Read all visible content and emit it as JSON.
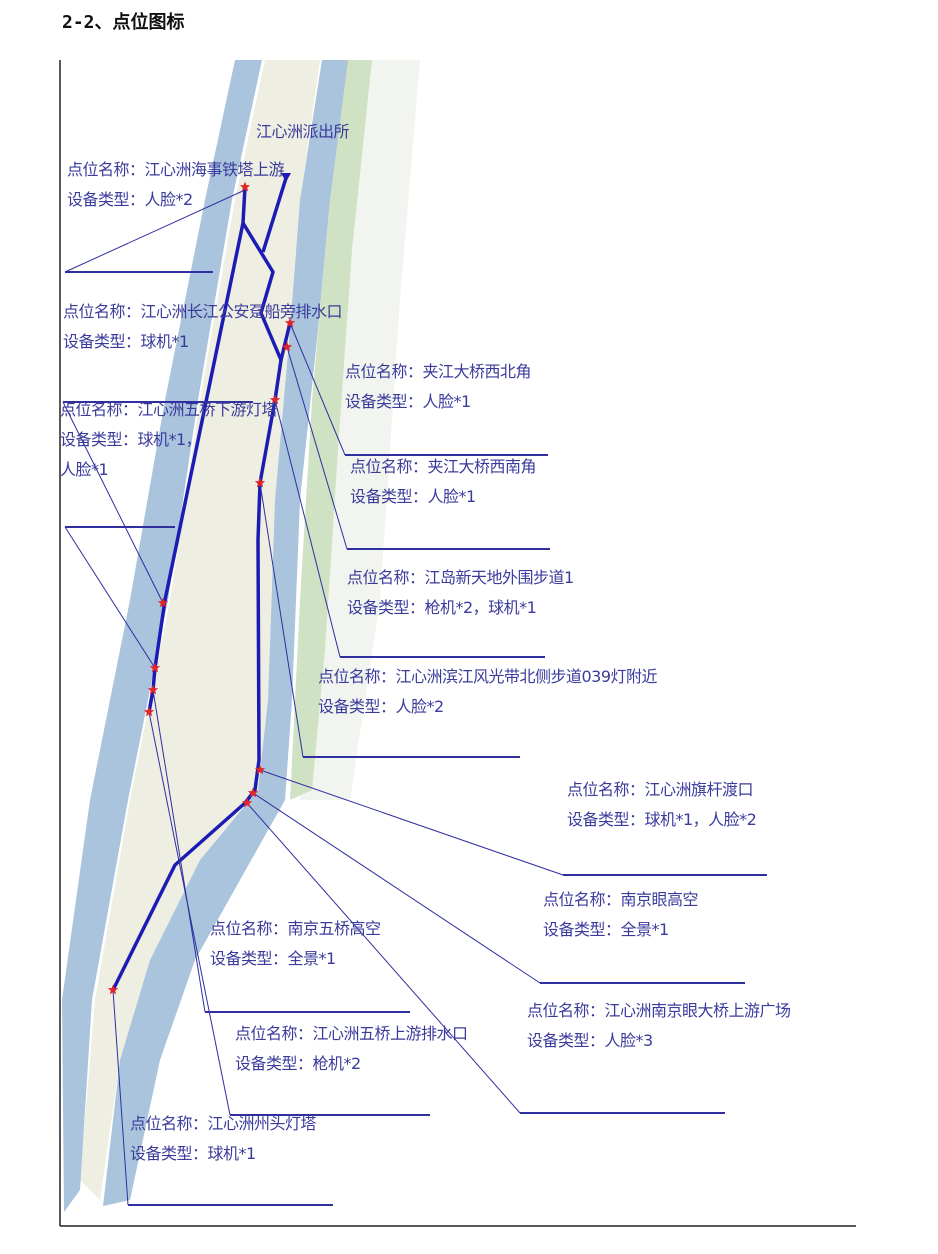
{
  "title": "2-2、点位图标",
  "map": {
    "police_station": "江心洲派出所",
    "colors": {
      "route": "#1c1cb4",
      "leader": "#2f2fa0",
      "marker": "#e0262a",
      "river": "#a9c4dc",
      "island": "#efeee3",
      "green": "#cfe3c4",
      "text": "#3b3b9c"
    },
    "marker_icon": "red-star-icon",
    "labels": [
      {
        "lines": [
          "点位名称：江心洲海事铁塔上游",
          "设备类型：人脸*2"
        ]
      },
      {
        "lines": [
          "点位名称：江心洲长江公安趸船旁排水口",
          "设备类型：球机*1"
        ]
      },
      {
        "lines": [
          "点位名称：江心洲五桥下游灯塔",
          "设备类型：球机*1，",
          "人脸*1"
        ]
      },
      {
        "lines": [
          "点位名称：夹江大桥西北角",
          "设备类型：人脸*1"
        ]
      },
      {
        "lines": [
          "点位名称：夹江大桥西南角",
          "设备类型：人脸*1"
        ]
      },
      {
        "lines": [
          "点位名称：江岛新天地外围步道1",
          "设备类型：枪机*2，球机*1"
        ]
      },
      {
        "lines": [
          "点位名称：江心洲滨江风光带北侧步道039灯附近",
          "设备类型：人脸*2"
        ]
      },
      {
        "lines": [
          "点位名称：江心洲旗杆渡口",
          "设备类型：球机*1，人脸*2"
        ]
      },
      {
        "lines": [
          "点位名称：南京眼高空",
          "设备类型：全景*1"
        ]
      },
      {
        "lines": [
          "点位名称：江心洲南京眼大桥上游广场",
          "设备类型：人脸*3"
        ]
      },
      {
        "lines": [
          "点位名称：南京五桥高空",
          "设备类型：全景*1"
        ]
      },
      {
        "lines": [
          "点位名称：江心洲五桥上游排水口",
          "设备类型：枪机*2"
        ]
      },
      {
        "lines": [
          "点位名称：江心洲州头灯塔",
          "设备类型：球机*1"
        ]
      }
    ]
  }
}
